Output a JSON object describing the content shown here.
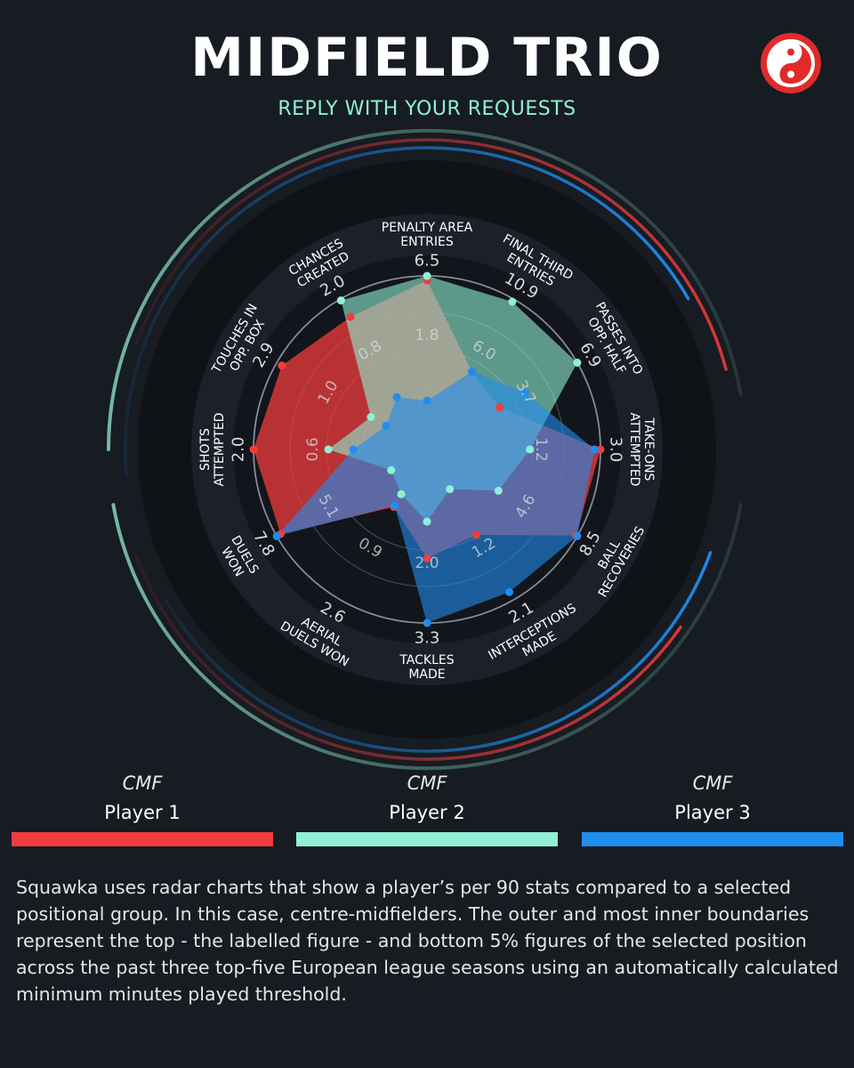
{
  "header": {
    "title": "MIDFIELD TRIO",
    "subtitle": "REPLY WITH YOUR REQUESTS"
  },
  "colors": {
    "background": "#171b22",
    "player1": "#f23c3c",
    "player2": "#8ff0d6",
    "player3": "#1f8ef0"
  },
  "logo": {
    "icon": "squawka-logo-icon",
    "color": "#e02b2b"
  },
  "chart_data": {
    "type": "radar",
    "axes": [
      {
        "label": [
          "PENALTY AREA",
          "ENTRIES"
        ],
        "max": 6.5,
        "inner_label": "1.8"
      },
      {
        "label": [
          "FINAL THIRD",
          "ENTRIES"
        ],
        "max": 10.9,
        "inner_label": "6.0"
      },
      {
        "label": [
          "PASSES INTO",
          "OPP. HALF"
        ],
        "max": 6.9,
        "inner_label": "3.7"
      },
      {
        "label": [
          "TAKE-ONS",
          "ATTEMPTED"
        ],
        "max": 3.0,
        "inner_label": "1.2"
      },
      {
        "label": [
          "BALL",
          "RECOVERIES"
        ],
        "max": 8.5,
        "inner_label": "4.6"
      },
      {
        "label": [
          "INTERCEPTIONS",
          "MADE"
        ],
        "max": 2.1,
        "inner_label": "1.2"
      },
      {
        "label": [
          "TACKLES",
          "MADE"
        ],
        "max": 3.3,
        "inner_label": "2.0"
      },
      {
        "label": [
          "AERIAL",
          "DUELS WON"
        ],
        "max": 2.6,
        "inner_label": "0.9"
      },
      {
        "label": [
          "DUELS",
          "WON"
        ],
        "max": 7.8,
        "inner_label": "5.1"
      },
      {
        "label": [
          "SHOTS",
          "ATTEMPTED"
        ],
        "max": 2.0,
        "inner_label": "0.6"
      },
      {
        "label": [
          "TOUCHES IN",
          "OPP. BOX"
        ],
        "max": 2.9,
        "inner_label": "1.0"
      },
      {
        "label": [
          "CHANCES",
          "CREATED"
        ],
        "max": 2.0,
        "inner_label": "0.8"
      }
    ],
    "series": [
      {
        "name": "Player 1",
        "position": "CMF",
        "color": "#f23c3c",
        "values": [
          0.97,
          0.43,
          0.39,
          1.0,
          0.99,
          0.49,
          0.56,
          0.27,
          0.97,
          1.0,
          0.96,
          0.86
        ]
      },
      {
        "name": "Player 2",
        "position": "CMF",
        "color": "#8ff0d6",
        "values": [
          1.0,
          0.98,
          1.0,
          0.52,
          0.38,
          0.13,
          0.31,
          0.17,
          0.1,
          0.49,
          0.26,
          0.99
        ]
      },
      {
        "name": "Player 3",
        "position": "CMF",
        "color": "#1f8ef0",
        "values": [
          0.15,
          0.43,
          0.59,
          0.96,
          1.0,
          0.94,
          1.0,
          0.26,
          1.0,
          0.32,
          0.14,
          0.23
        ]
      }
    ]
  },
  "legend": [
    {
      "position": "CMF",
      "name": "Player 1"
    },
    {
      "position": "CMF",
      "name": "Player 2"
    },
    {
      "position": "CMF",
      "name": "Player 3"
    }
  ],
  "description": "Squawka uses radar charts that show a player’s per 90 stats compared to a selected positional group. In this case, centre-midfielders. The outer and most inner boundaries represent the top - the labelled figure - and bottom 5% figures of the selected position across the past three top-five European league seasons using an automatically calculated minimum minutes played threshold."
}
